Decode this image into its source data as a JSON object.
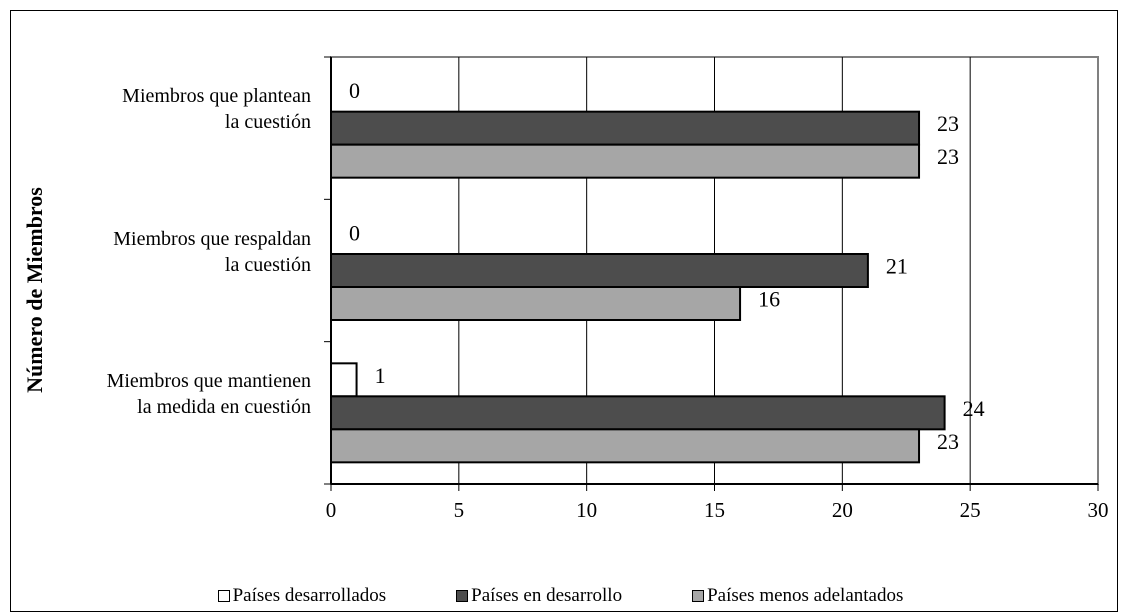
{
  "chart_data": {
    "type": "bar",
    "orientation": "horizontal",
    "title": "",
    "ylabel": "Número de Miembros",
    "xlabel": "",
    "xlim": [
      0,
      30
    ],
    "xticks": [
      "0",
      "5",
      "10",
      "15",
      "20",
      "25",
      "30"
    ],
    "grid": true,
    "legend_position": "bottom",
    "categories": [
      "Miembros que plantean\nla cuestión",
      "Miembros que respaldan\nla cuestión",
      "Miembros que mantienen\nla medida en cuestión"
    ],
    "series": [
      {
        "name": "Países desarrollados",
        "color": "#ffffff",
        "values": [
          0,
          0,
          1
        ]
      },
      {
        "name": "Países en desarrollo",
        "color": "#4d4d4d",
        "values": [
          23,
          21,
          24
        ]
      },
      {
        "name": "Países menos adelantados",
        "color": "#a6a6a6",
        "values": [
          23,
          16,
          23
        ]
      }
    ]
  }
}
